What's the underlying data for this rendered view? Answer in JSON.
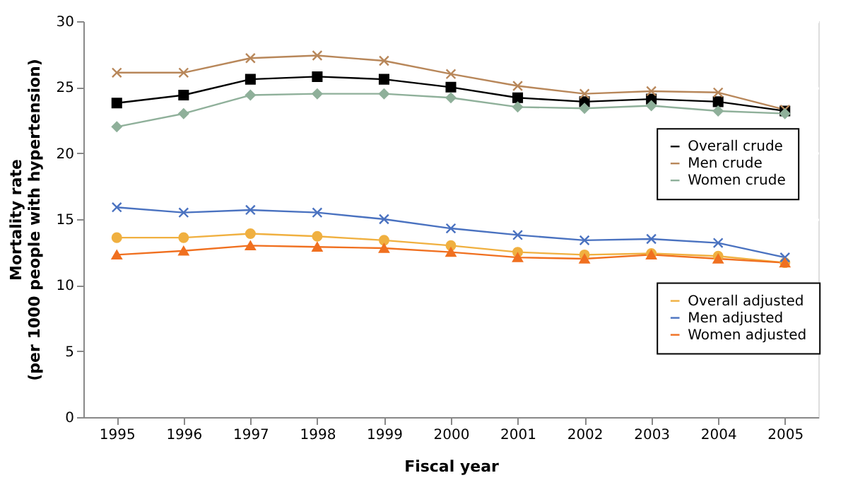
{
  "chart_data": {
    "type": "line",
    "xlabel": "Fiscal year",
    "ylabel": "Mortality rate (per 1000 people with hypertension)",
    "categories": [
      "1995",
      "1996",
      "1997",
      "1998",
      "1999",
      "2000",
      "2001",
      "2002",
      "2003",
      "2004",
      "2005"
    ],
    "series": [
      {
        "name": "Overall crude",
        "color": "#000000",
        "marker": "square",
        "values": [
          23.8,
          24.4,
          25.6,
          25.8,
          25.6,
          25.0,
          24.2,
          23.9,
          24.1,
          23.9,
          23.2
        ]
      },
      {
        "name": "Men crude",
        "color": "#b8875a",
        "marker": "cross",
        "values": [
          26.1,
          26.1,
          27.2,
          27.4,
          27.0,
          26.0,
          25.1,
          24.5,
          24.7,
          24.6,
          23.3
        ]
      },
      {
        "name": "Women crude",
        "color": "#8fb09a",
        "marker": "diamond",
        "values": [
          22.0,
          23.0,
          24.4,
          24.5,
          24.5,
          24.2,
          23.5,
          23.4,
          23.6,
          23.2,
          23.0
        ]
      },
      {
        "name": "Overall adjusted",
        "color": "#f0b040",
        "marker": "circle",
        "values": [
          13.6,
          13.6,
          13.9,
          13.7,
          13.4,
          13.0,
          12.5,
          12.3,
          12.4,
          12.2,
          11.7
        ]
      },
      {
        "name": "Men adjusted",
        "color": "#4a72c0",
        "marker": "cross",
        "values": [
          15.9,
          15.5,
          15.7,
          15.5,
          15.0,
          14.3,
          13.8,
          13.4,
          13.5,
          13.2,
          12.1
        ]
      },
      {
        "name": "Women adjusted",
        "color": "#f07020",
        "marker": "triangle",
        "values": [
          12.3,
          12.6,
          13.0,
          12.9,
          12.8,
          12.5,
          12.1,
          12.0,
          12.3,
          12.0,
          11.7
        ]
      }
    ],
    "ylim": [
      0,
      30
    ],
    "yticks": [
      0,
      5,
      10,
      15,
      20,
      25,
      30
    ],
    "grid": "y",
    "legend": "right"
  }
}
